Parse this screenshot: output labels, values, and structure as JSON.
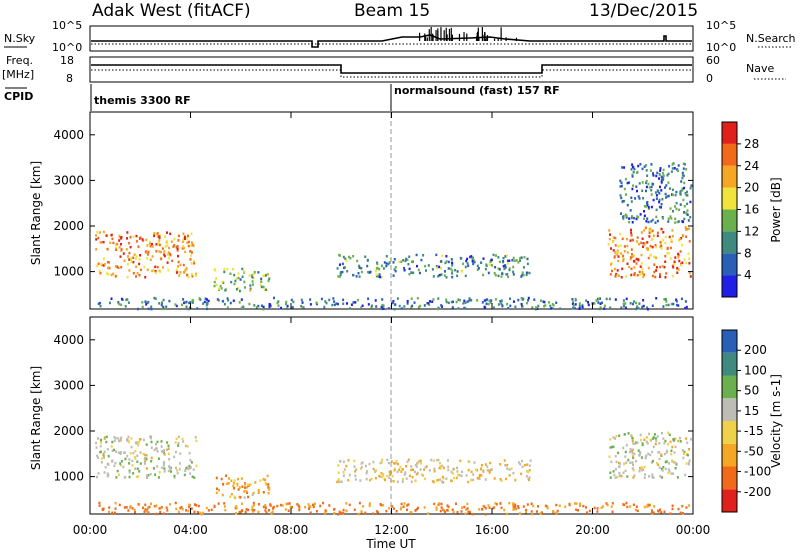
{
  "header": {
    "station": "Adak West (fitACF)",
    "beam": "Beam 15",
    "date": "13/Dec/2015"
  },
  "noise_panel": {
    "left_label": "N.Sky",
    "left_ticks": [
      "10^5",
      "10^0"
    ],
    "right_label": "N.Search",
    "right_ticks": [
      "10^5",
      "10^0"
    ]
  },
  "freq_panel": {
    "left_label_1": "Freq.",
    "left_label_2": "[MHz]",
    "left_ticks": [
      "18",
      "8"
    ],
    "right_label": "Nave",
    "right_ticks": [
      "60",
      "0"
    ]
  },
  "cpid": {
    "label": "CPID",
    "segments": [
      "themis 3300 RF",
      "normalsound (fast) 157 RF"
    ]
  },
  "x_axis": {
    "label": "Time UT",
    "ticks": [
      "00:00",
      "04:00",
      "08:00",
      "12:00",
      "16:00",
      "20:00",
      "00:00"
    ]
  },
  "colors": {
    "power_scale": [
      "#1f1fe6",
      "#2a5fb8",
      "#3f8a7f",
      "#6ab04c",
      "#f0e33a",
      "#f5a623",
      "#f06a1a",
      "#e0201a"
    ],
    "velocity_scale": [
      "#e0201a",
      "#f06a1a",
      "#f5a623",
      "#f0d24a",
      "#bdbdb5",
      "#6ab04c",
      "#3f8a7f",
      "#2a5fb8"
    ]
  },
  "chart_data": [
    {
      "type": "heatmap",
      "title": "",
      "xlabel": "",
      "ylabel": "Slant Range [km]",
      "xlim": [
        "00:00",
        "24:00"
      ],
      "ylim": [
        180,
        4500
      ],
      "yticks": [
        "1000",
        "2000",
        "3000",
        "4000"
      ],
      "colorbar": {
        "label": "Power [dB]",
        "ticks": [
          "4",
          "8",
          "12",
          "16",
          "20",
          "24",
          "28"
        ]
      },
      "echo_regions": [
        {
          "t_start": 0.2,
          "t_end": 4.2,
          "r_low": 900,
          "r_high": 1900,
          "value": 24
        },
        {
          "t_start": 4.9,
          "t_end": 7.1,
          "r_low": 600,
          "r_high": 1100,
          "value": 14
        },
        {
          "t_start": 9.8,
          "t_end": 17.5,
          "r_low": 900,
          "r_high": 1400,
          "value": 10
        },
        {
          "t_start": 0.3,
          "t_end": 23.8,
          "r_low": 200,
          "r_high": 450,
          "value": 8
        },
        {
          "t_start": 20.6,
          "t_end": 23.9,
          "r_low": 900,
          "r_high": 2000,
          "value": 24
        },
        {
          "t_start": 21.0,
          "t_end": 23.9,
          "r_low": 2100,
          "r_high": 3400,
          "value": 8
        }
      ]
    },
    {
      "type": "heatmap",
      "title": "",
      "xlabel": "Time UT",
      "ylabel": "Slant Range [km]",
      "xlim": [
        "00:00",
        "24:00"
      ],
      "ylim": [
        180,
        4500
      ],
      "yticks": [
        "1000",
        "2000",
        "3000",
        "4000"
      ],
      "colorbar": {
        "label": "Velocity [m s-1]",
        "ticks": [
          "200",
          "100",
          "50",
          "15",
          "-15",
          "-50",
          "-100",
          "-200"
        ]
      },
      "echo_regions": [
        {
          "t_start": 0.2,
          "t_end": 4.2,
          "r_low": 1000,
          "r_high": 1900,
          "value": 0
        },
        {
          "t_start": 4.9,
          "t_end": 7.1,
          "r_low": 550,
          "r_high": 1050,
          "value": -40
        },
        {
          "t_start": 9.8,
          "t_end": 17.5,
          "r_low": 900,
          "r_high": 1400,
          "value": -20
        },
        {
          "t_start": 0.3,
          "t_end": 23.8,
          "r_low": 200,
          "r_high": 450,
          "value": -60
        },
        {
          "t_start": 20.6,
          "t_end": 23.9,
          "r_low": 1000,
          "r_high": 2000,
          "value": 0
        }
      ]
    }
  ]
}
